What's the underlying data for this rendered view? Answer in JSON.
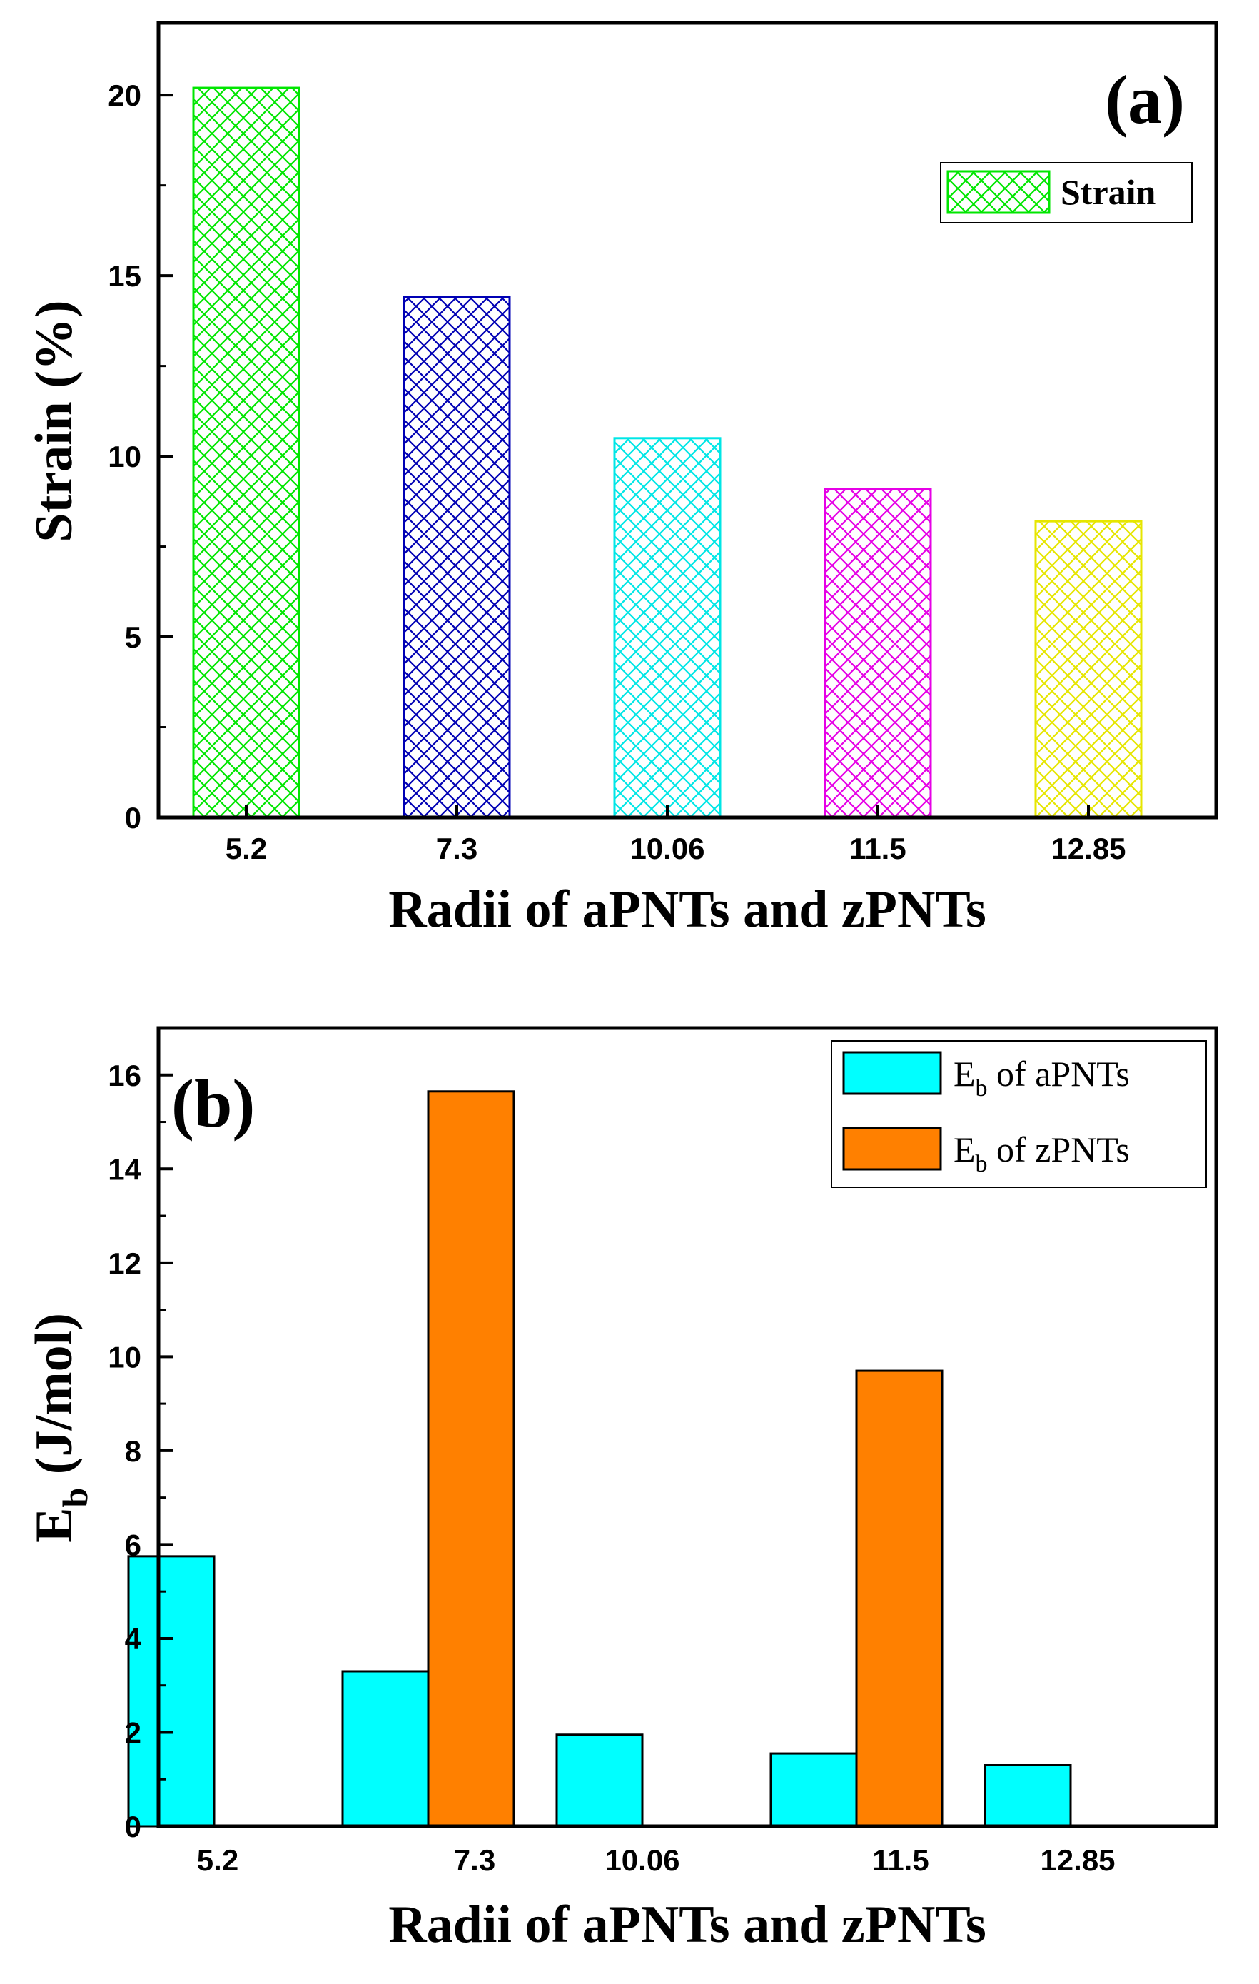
{
  "chart_data": [
    {
      "panel": "(a)",
      "type": "bar",
      "categories": [
        "5.2",
        "7.3",
        "10.06",
        "11.5",
        "12.85"
      ],
      "series": [
        {
          "name": "Strain",
          "values": [
            20.2,
            14.4,
            10.5,
            9.1,
            8.2
          ],
          "colors": [
            "#00e600",
            "#0000b4",
            "#00e6e6",
            "#e600e6",
            "#e6e600"
          ],
          "pattern": "crosshatch"
        }
      ],
      "xlabel": "Radii of aPNTs and zPNTs",
      "ylabel": "Strain (%)",
      "ylim": [
        0,
        22
      ],
      "yticks": [
        0,
        5,
        10,
        15,
        20
      ],
      "legend_position": "top-right",
      "legend": [
        "Strain"
      ]
    },
    {
      "panel": "(b)",
      "type": "bar",
      "categories": [
        "5.2",
        "7.3",
        "10.06",
        "11.5",
        "12.85"
      ],
      "series": [
        {
          "name": "E_b of aPNTs",
          "legend_main": "E",
          "legend_sub": "b",
          "legend_rest": " of aPNTs",
          "color": "#00ffff",
          "values": [
            5.75,
            3.3,
            1.95,
            1.55,
            1.3
          ]
        },
        {
          "name": "E_b of zPNTs",
          "legend_main": "E",
          "legend_sub": "b",
          "legend_rest": " of zPNTs",
          "color": "#ff8000",
          "values": [
            null,
            15.65,
            null,
            9.7,
            null
          ]
        }
      ],
      "xlabel": "Radii of aPNTs and zPNTs",
      "ylabel_main": "E",
      "ylabel_sub": "b",
      "ylabel_rest": " (J/mol)",
      "ylim": [
        0,
        17
      ],
      "yticks": [
        0,
        2,
        4,
        6,
        8,
        10,
        12,
        14,
        16
      ],
      "legend_position": "top-right"
    }
  ]
}
